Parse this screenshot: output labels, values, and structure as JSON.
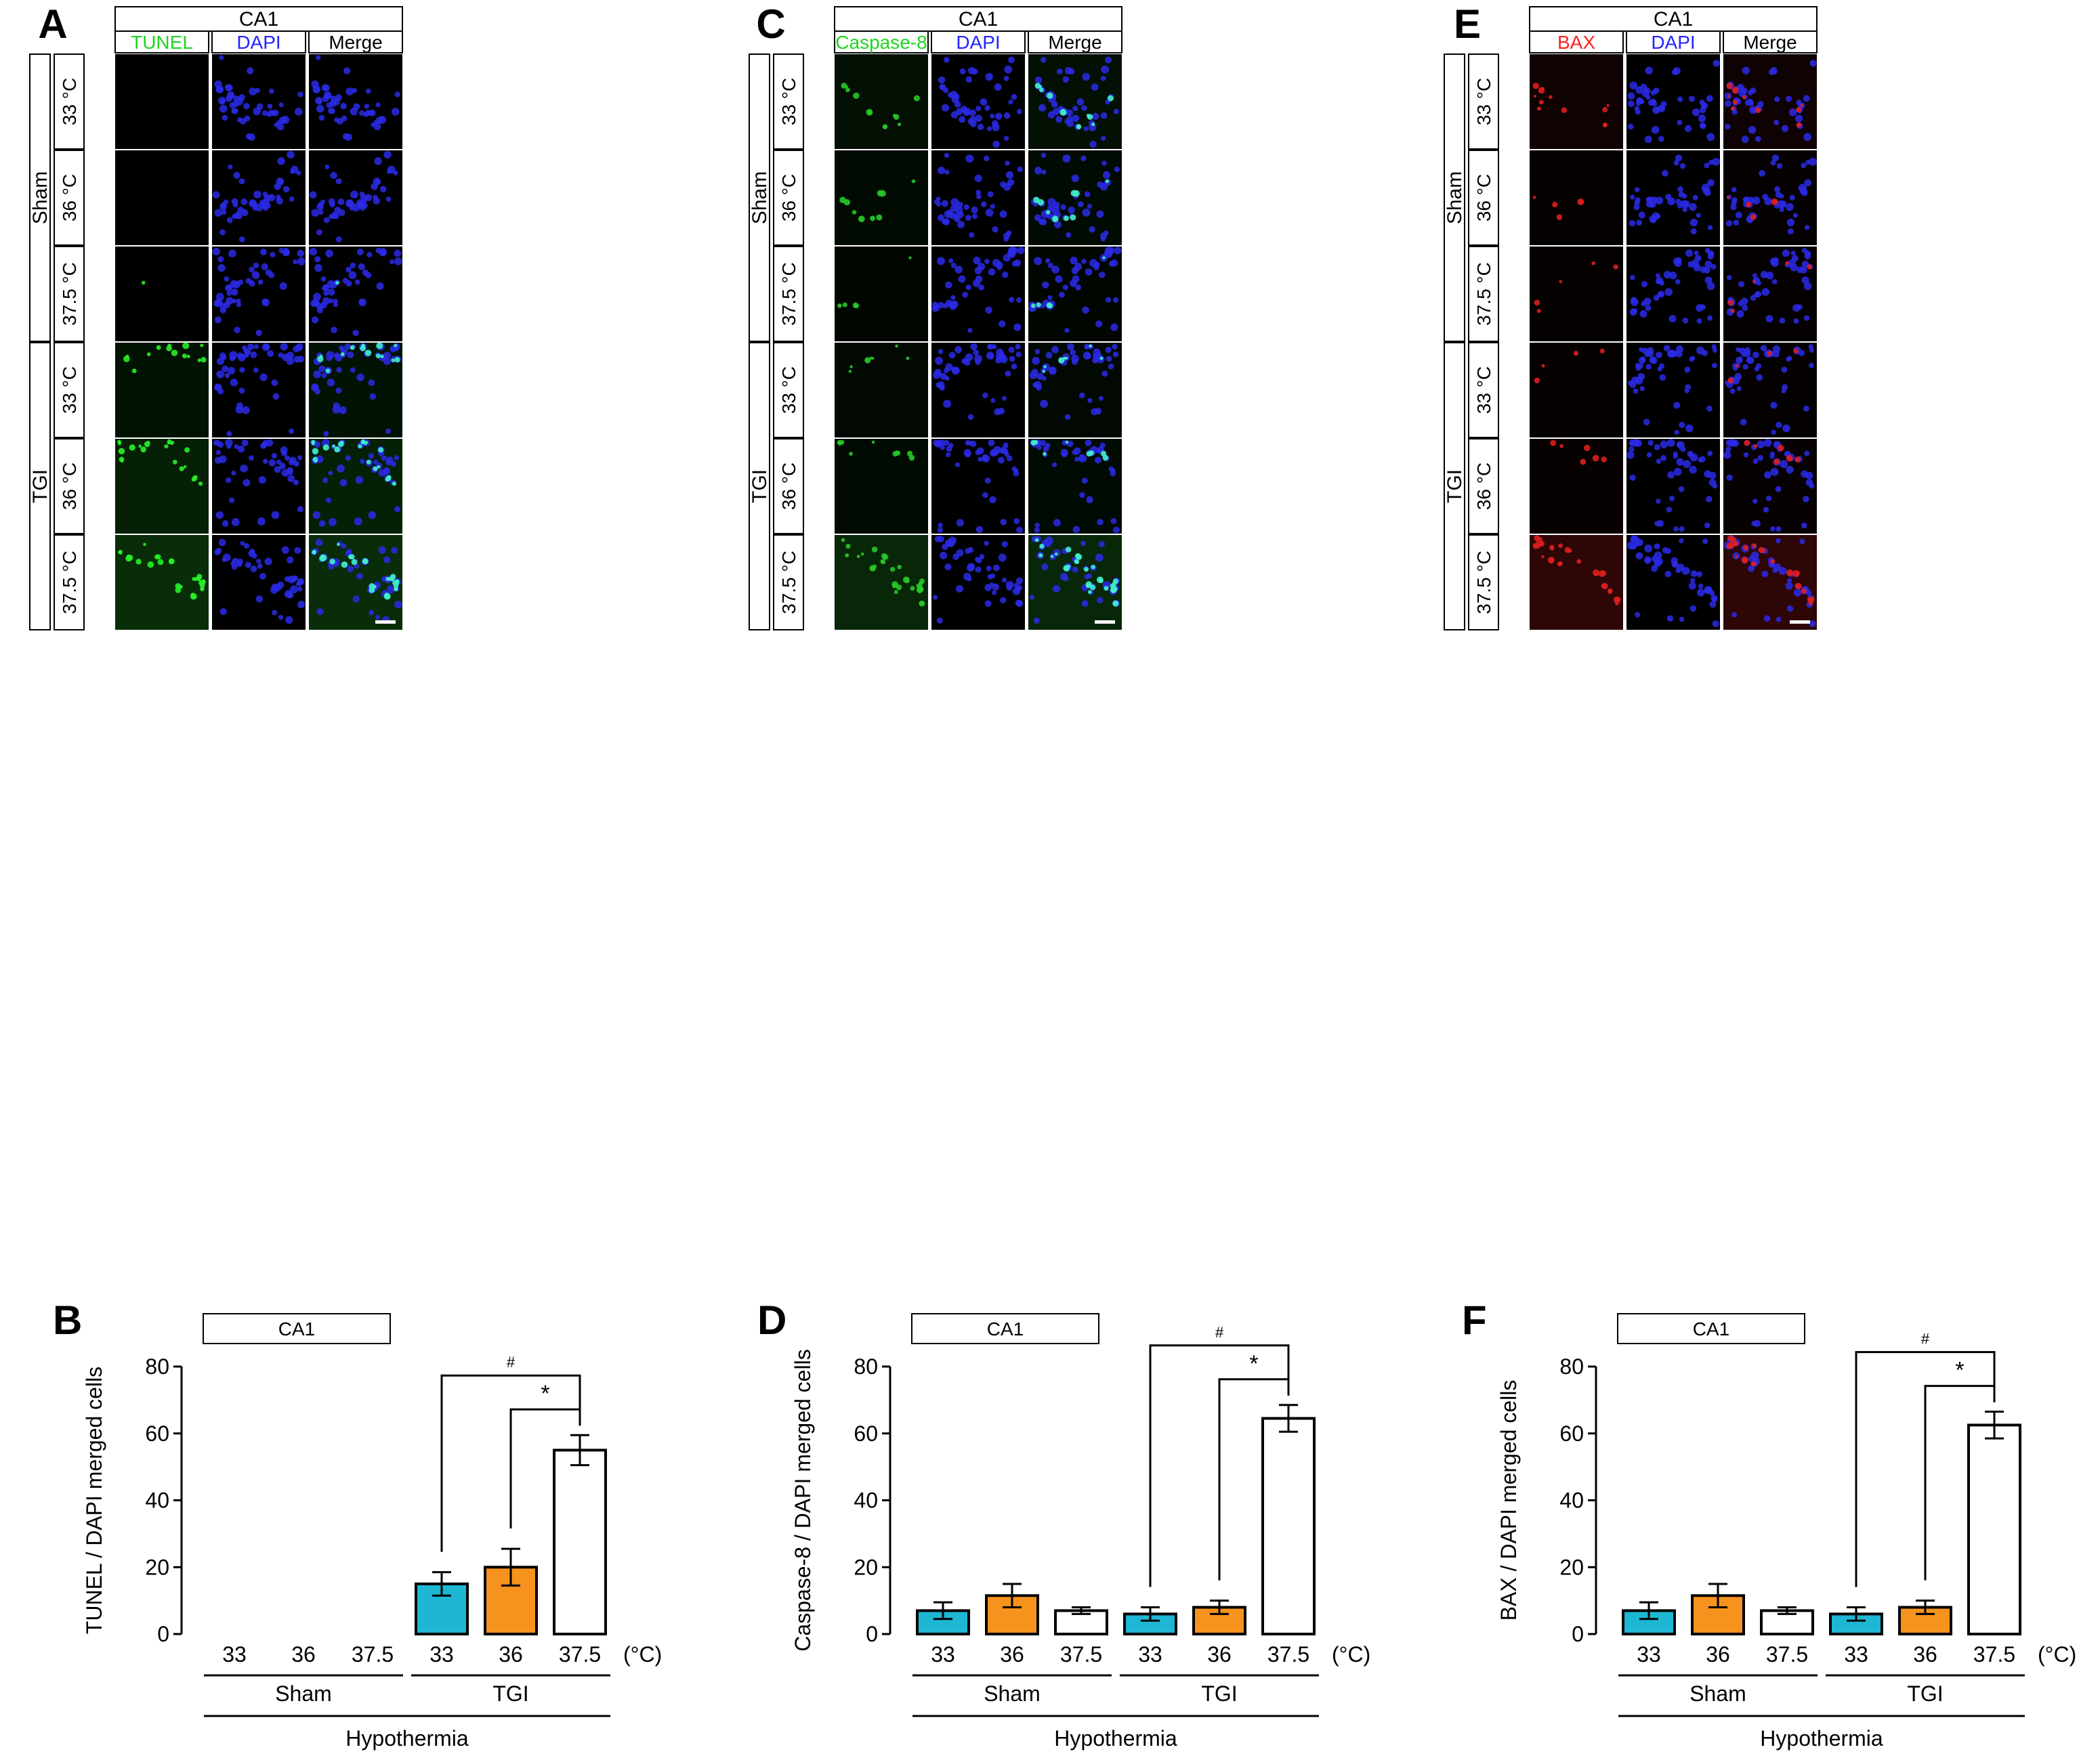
{
  "region_label": "CA1",
  "temp_unit": "(°C)",
  "groups": [
    "Sham",
    "TGI"
  ],
  "temperatures": [
    "33 °C",
    "36 °C",
    "37.5 °C"
  ],
  "colors": {
    "bar_33": "#1eb7d3",
    "bar_36": "#f6921e",
    "bar_375": "#ffffff",
    "tunel": "#1fd41f",
    "caspase": "#1fd41f",
    "bax": "#ff2020",
    "dapi": "#2323ff",
    "merge": "#000000"
  },
  "image_panels": [
    {
      "letter": "A",
      "region": "CA1",
      "marker": "TUNEL",
      "marker_color": "#1fd41f",
      "columns": [
        "TUNEL",
        "DAPI",
        "Merge"
      ],
      "signal_rgb": [
        40,
        240,
        40
      ],
      "signal_levels": [
        0.0,
        0.0,
        0.02,
        0.35,
        0.6,
        0.85
      ]
    },
    {
      "letter": "C",
      "region": "CA1",
      "marker": "Caspase-8",
      "marker_color": "#1fd41f",
      "columns": [
        "Caspase-8",
        "DAPI",
        "Merge"
      ],
      "signal_rgb": [
        40,
        200,
        40
      ],
      "signal_levels": [
        0.35,
        0.25,
        0.15,
        0.2,
        0.25,
        0.9
      ]
    },
    {
      "letter": "E",
      "region": "CA1",
      "marker": "BAX",
      "marker_color": "#ff2020",
      "columns": [
        "BAX",
        "DAPI",
        "Merge"
      ],
      "signal_rgb": [
        220,
        30,
        30
      ],
      "signal_levels": [
        0.3,
        0.12,
        0.12,
        0.1,
        0.15,
        0.95
      ]
    }
  ],
  "chart_data": [
    {
      "panel": "B",
      "type": "bar",
      "title": "CA1",
      "ylabel": "TUNEL / DAPI merged cells",
      "ylim": [
        0,
        80
      ],
      "yticks": [
        0,
        20,
        40,
        60,
        80
      ],
      "categories": [
        "33",
        "36",
        "37.5",
        "33",
        "36",
        "37.5"
      ],
      "group_labels": [
        "Sham",
        "TGI"
      ],
      "xlabel": "Hypothermia",
      "unit": "(°C)",
      "values": [
        0,
        0,
        0,
        15,
        20,
        55
      ],
      "errors": [
        0,
        0,
        0,
        3.5,
        5.5,
        4.5
      ],
      "significance": [
        {
          "from_index": 3,
          "to_index": 5,
          "symbol": "#"
        },
        {
          "from_index": 4,
          "to_index": 5,
          "symbol": "*"
        }
      ]
    },
    {
      "panel": "D",
      "type": "bar",
      "title": "CA1",
      "ylabel": "Caspase-8 / DAPI merged cells",
      "ylim": [
        0,
        80
      ],
      "yticks": [
        0,
        20,
        40,
        60,
        80
      ],
      "categories": [
        "33",
        "36",
        "37.5",
        "33",
        "36",
        "37.5"
      ],
      "group_labels": [
        "Sham",
        "TGI"
      ],
      "xlabel": "Hypothermia",
      "unit": "(°C)",
      "values": [
        7,
        11.5,
        7,
        6,
        8,
        64.5
      ],
      "errors": [
        2.5,
        3.5,
        1,
        2,
        2,
        4
      ],
      "significance": [
        {
          "from_index": 3,
          "to_index": 5,
          "symbol": "#"
        },
        {
          "from_index": 4,
          "to_index": 5,
          "symbol": "*"
        }
      ]
    },
    {
      "panel": "F",
      "type": "bar",
      "title": "CA1",
      "ylabel": "BAX / DAPI merged cells",
      "ylim": [
        0,
        80
      ],
      "yticks": [
        0,
        20,
        40,
        60,
        80
      ],
      "categories": [
        "33",
        "36",
        "37.5",
        "33",
        "36",
        "37.5"
      ],
      "group_labels": [
        "Sham",
        "TGI"
      ],
      "xlabel": "Hypothermia",
      "unit": "(°C)",
      "values": [
        7,
        11.5,
        7,
        6,
        8,
        62.5
      ],
      "errors": [
        2.5,
        3.5,
        1,
        2,
        2,
        4
      ],
      "significance": [
        {
          "from_index": 3,
          "to_index": 5,
          "symbol": "#"
        },
        {
          "from_index": 4,
          "to_index": 5,
          "symbol": "*"
        }
      ]
    }
  ]
}
